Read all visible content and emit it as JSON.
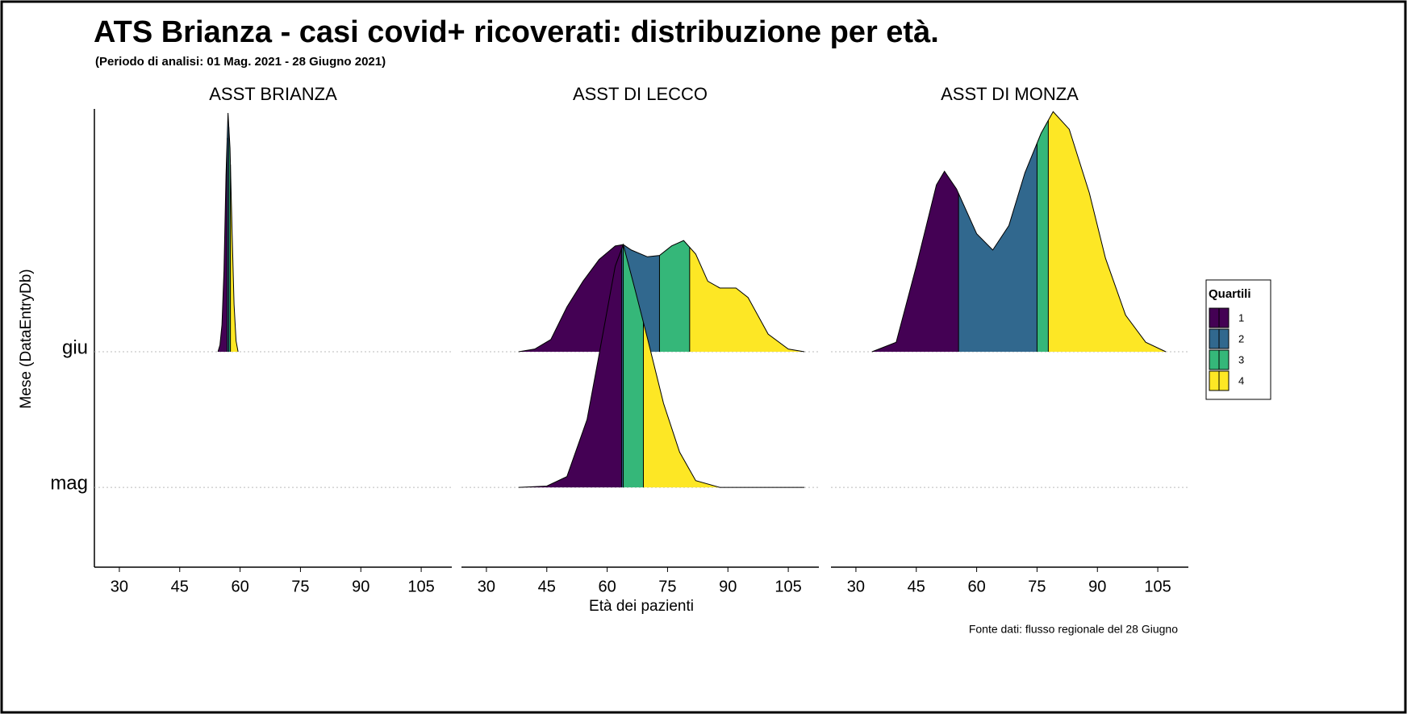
{
  "chart_data": {
    "type": "ridgeline",
    "title": "ATS Brianza - casi covid+ ricoverati: distribuzione per età.",
    "subtitle": "(Periodo di analisi: 01 Mag. 2021 - 28 Giugno 2021)",
    "xlabel": "Età dei pazienti",
    "ylabel": "Mese (DataEntryDb)",
    "caption": "Fonte dati: flusso regionale del 28 Giugno",
    "categories": [
      "mag",
      "giu"
    ],
    "ylim": [
      0.43,
      3.79
    ],
    "xlim": [
      23.8,
      112.6
    ],
    "xticks": [
      30,
      45,
      60,
      75,
      90,
      105
    ],
    "legend": {
      "title": "Quartili",
      "labels": [
        "1",
        "2",
        "3",
        "4"
      ],
      "colors": [
        "#440154",
        "#31688e",
        "#35b779",
        "#fde725"
      ]
    },
    "panels": [
      {
        "name": "ASST BRIANZA",
        "ridges": [
          null,
          {
            "x": [
              54.5,
              55,
              55.5,
              56,
              56.5,
              57,
              57.5,
              58,
              58.5,
              59,
              59.5
            ],
            "density": [
              0,
              0.05,
              0.2,
              0.6,
              1.3,
              1.76,
              1.5,
              0.9,
              0.35,
              0.08,
              0
            ],
            "quartiles": [
              56.8,
              57.2,
              57.6
            ]
          }
        ]
      },
      {
        "name": "ASST DI LECCO",
        "ridges": [
          {
            "x": [
              38,
              45,
              50,
              55,
              58,
              62,
              64,
              67,
              70,
              74,
              78,
              82,
              88,
              95,
              109
            ],
            "density": [
              0,
              0.01,
              0.08,
              0.5,
              0.98,
              1.63,
              1.79,
              1.45,
              1.1,
              0.62,
              0.26,
              0.05,
              0,
              0,
              0
            ],
            "quartiles": [
              63.6,
              64,
              69
            ]
          },
          {
            "x": [
              38,
              42,
              46,
              50,
              54,
              58,
              62,
              64,
              66,
              70,
              73,
              76,
              79,
              82,
              85,
              88,
              92,
              95,
              100,
              105,
              109
            ],
            "density": [
              0,
              0.02,
              0.09,
              0.33,
              0.52,
              0.68,
              0.78,
              0.79,
              0.75,
              0.7,
              0.71,
              0.78,
              0.82,
              0.72,
              0.52,
              0.47,
              0.47,
              0.4,
              0.13,
              0.02,
              0
            ],
            "quartiles": [
              64,
              73,
              80.5
            ]
          }
        ]
      },
      {
        "name": "ASST DI MONZA",
        "ridges": [
          null,
          {
            "x": [
              34,
              40,
              45,
              50,
              52,
              55,
              60,
              64,
              68,
              72,
              76,
              79,
              83,
              88,
              92,
              97,
              102,
              107
            ],
            "density": [
              0,
              0.07,
              0.63,
              1.23,
              1.33,
              1.2,
              0.87,
              0.75,
              0.93,
              1.32,
              1.61,
              1.77,
              1.64,
              1.17,
              0.69,
              0.27,
              0.07,
              0
            ],
            "quartiles": [
              55.5,
              75,
              77.8
            ]
          }
        ]
      }
    ]
  }
}
